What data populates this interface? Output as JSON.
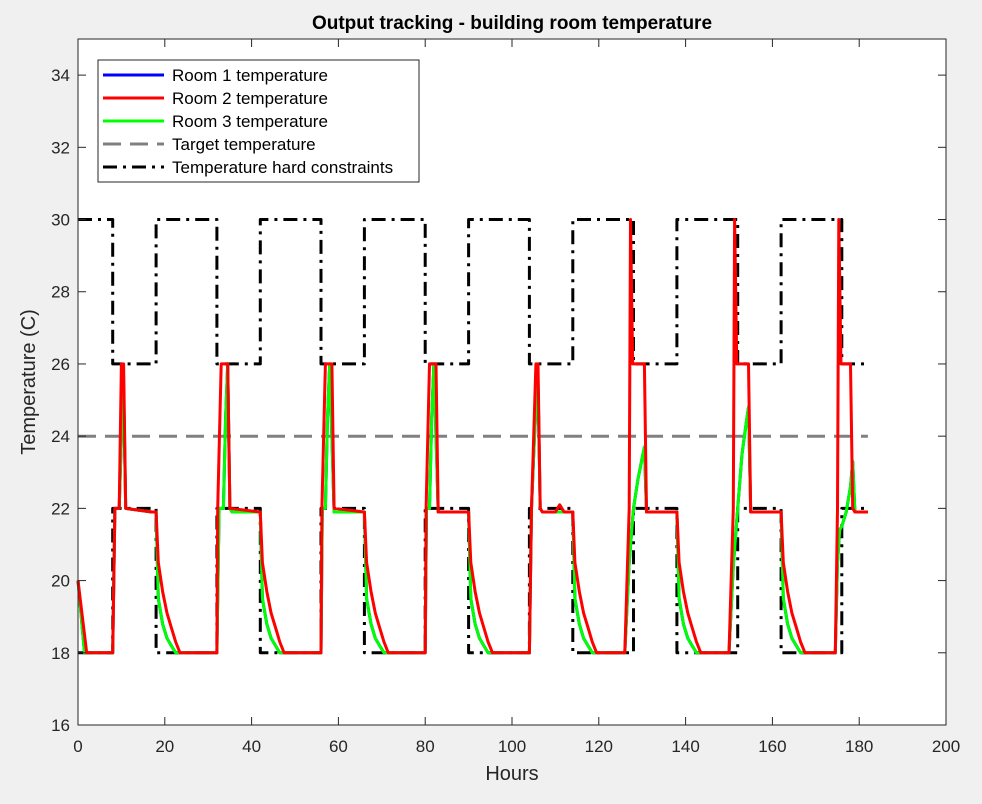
{
  "chart_data": {
    "type": "line",
    "title": "Output tracking - building room temperature",
    "xlabel": "Hours",
    "ylabel": "Temperature (C)",
    "xlim": [
      0,
      200
    ],
    "ylim": [
      16,
      35
    ],
    "xticks": [
      0,
      20,
      40,
      60,
      80,
      100,
      120,
      140,
      160,
      180,
      200
    ],
    "yticks": [
      16,
      18,
      20,
      22,
      24,
      26,
      28,
      30,
      32,
      34
    ],
    "grid": false,
    "legend_position": "top-left",
    "colors": {
      "room1": "#0000ff",
      "room2": "#ff0000",
      "room3": "#00ff00",
      "target": "#808080",
      "constraints": "#000000"
    },
    "series": [
      {
        "name": "Room 1 temperature",
        "style": "solid",
        "x": [
          0,
          1.5,
          8,
          8.5,
          9.5,
          10,
          10.5,
          11,
          17,
          18,
          18.5,
          19.5,
          20.5,
          21.5,
          22.5,
          32,
          32.5,
          33.5,
          34,
          34.5,
          35,
          35.5,
          42,
          42.5,
          43.5,
          44.5,
          45.5,
          46.5,
          56,
          56.3,
          57,
          57.5,
          58,
          59,
          66,
          66.5,
          67.5,
          68.5,
          69.5,
          70.5,
          80,
          80.3,
          81,
          81.5,
          82,
          83,
          90,
          90.5,
          91.5,
          92.5,
          93.5,
          94.5,
          104,
          104.5,
          105,
          105.5,
          106,
          106.5,
          107,
          114,
          114.5,
          115.5,
          116.5,
          117.5,
          118.5,
          126,
          127,
          128,
          129,
          130,
          130.5,
          131,
          138,
          138.5,
          139.5,
          140.5,
          141.5,
          142.5,
          150,
          151,
          152,
          153,
          154,
          154.5,
          155,
          162,
          162.5,
          163.5,
          164.5,
          165.5,
          166.5,
          174.5,
          175,
          175.5,
          176,
          177,
          178,
          178.5,
          179,
          182
        ],
        "y": [
          20,
          18,
          18,
          22,
          22,
          24,
          25.3,
          22,
          21.9,
          21.9,
          19.5,
          18.8,
          18.4,
          18.2,
          18,
          18,
          22,
          22,
          24.5,
          26,
          22,
          21.9,
          21.9,
          19.5,
          18.8,
          18.4,
          18.2,
          18,
          18,
          22,
          22,
          24.5,
          26,
          21.9,
          21.9,
          19.5,
          18.8,
          18.4,
          18.2,
          18,
          18,
          22,
          22,
          24.5,
          26,
          21.9,
          21.9,
          19.5,
          18.8,
          18.4,
          18.2,
          18,
          18,
          22,
          23.5,
          24.8,
          25.5,
          22,
          21.9,
          21.9,
          19.5,
          18.8,
          18.4,
          18.2,
          18,
          18,
          20.5,
          22,
          22.8,
          23.4,
          23.7,
          21.9,
          21.9,
          19.5,
          18.8,
          18.4,
          18.2,
          18,
          18,
          20.4,
          22,
          23.5,
          24.4,
          24.8,
          21.9,
          21.9,
          19.5,
          18.8,
          18.4,
          18.2,
          18,
          18,
          20.5,
          21.4,
          21.5,
          21.9,
          22.6,
          23.3,
          21.9,
          21.9
        ]
      },
      {
        "name": "Room 2 temperature",
        "style": "solid",
        "x": [
          0,
          2,
          8,
          8.5,
          9.5,
          10,
          10.5,
          11,
          17,
          18,
          18.5,
          19.5,
          20.5,
          21.5,
          22.5,
          23.5,
          32,
          32.2,
          33,
          33.5,
          34.5,
          35,
          42,
          42.5,
          43.5,
          44.5,
          45.5,
          46.5,
          47.5,
          56,
          56.2,
          57,
          57.5,
          58.5,
          59,
          66,
          66.5,
          67.5,
          68.5,
          69.5,
          70.5,
          71.5,
          80,
          80.2,
          81,
          81.5,
          82.5,
          83,
          90,
          90.5,
          91.5,
          92.5,
          93.5,
          94.5,
          95.5,
          104,
          104.5,
          105.5,
          106,
          106.5,
          107,
          110,
          111,
          112,
          113,
          114,
          114.5,
          115.5,
          116.5,
          117.5,
          118.5,
          119.5,
          126,
          127,
          127.3,
          127.8,
          128.5,
          129,
          129.5,
          130,
          130.5,
          131,
          138,
          138.5,
          139.5,
          140.5,
          141.5,
          142.5,
          143.5,
          150,
          151,
          151.3,
          151.8,
          152.5,
          153,
          153.5,
          154,
          154.5,
          155,
          162,
          162.5,
          163.5,
          164.5,
          165.5,
          166.5,
          167.5,
          174.5,
          175,
          175.3,
          175.8,
          176.5,
          177,
          177.5,
          178,
          178.5,
          179,
          182
        ],
        "y": [
          20,
          18,
          18,
          22,
          22,
          26,
          26,
          22,
          21.9,
          21.9,
          20.5,
          19.7,
          19.1,
          18.7,
          18.3,
          18,
          18,
          22,
          26,
          26,
          26,
          22,
          21.9,
          20.5,
          19.7,
          19.1,
          18.7,
          18.3,
          18,
          18,
          22,
          26,
          26,
          26,
          22,
          21.9,
          20.5,
          19.7,
          19.1,
          18.7,
          18.3,
          18,
          18,
          22,
          26,
          26,
          26,
          21.9,
          21.9,
          20.5,
          19.7,
          19.1,
          18.7,
          18.3,
          18,
          18,
          22,
          26,
          26,
          22,
          21.9,
          21.9,
          22.1,
          21.9,
          21.9,
          21.9,
          20.5,
          19.7,
          19.1,
          18.7,
          18.3,
          18,
          18,
          22,
          30,
          26,
          26,
          26,
          26,
          26,
          26,
          21.9,
          21.9,
          20.5,
          19.7,
          19.1,
          18.7,
          18.3,
          18,
          18,
          22,
          30,
          26,
          26,
          26,
          26,
          26,
          26,
          21.9,
          21.9,
          20.5,
          19.7,
          19.1,
          18.7,
          18.3,
          18,
          18,
          22,
          30,
          26,
          26,
          26,
          26,
          26,
          22,
          21.9,
          21.9
        ]
      },
      {
        "name": "Room 3 temperature",
        "style": "solid",
        "x": [
          0,
          1.5,
          8,
          8.5,
          9.5,
          10,
          10.5,
          11,
          17,
          18,
          18.5,
          19.5,
          20.5,
          21.5,
          22.5,
          32,
          32.5,
          33.5,
          34,
          34.5,
          35,
          35.5,
          42,
          42.5,
          43.5,
          44.5,
          45.5,
          46.5,
          56,
          56.3,
          57,
          57.5,
          58,
          59,
          66,
          66.5,
          67.5,
          68.5,
          69.5,
          70.5,
          80,
          80.3,
          81,
          81.5,
          82,
          83,
          90,
          90.5,
          91.5,
          92.5,
          93.5,
          94.5,
          104,
          104.5,
          105,
          105.5,
          106,
          106.5,
          107,
          114,
          114.5,
          115.5,
          116.5,
          117.5,
          118.5,
          126,
          127,
          128,
          129,
          130,
          130.5,
          131,
          138,
          138.5,
          139.5,
          140.5,
          141.5,
          142.5,
          150,
          151,
          152,
          153,
          154,
          154.5,
          155,
          162,
          162.5,
          163.5,
          164.5,
          165.5,
          166.5,
          174.5,
          175,
          175.5,
          176,
          177,
          178,
          178.5,
          179,
          182
        ],
        "y": [
          20,
          18,
          18,
          22,
          22,
          24,
          25.3,
          22,
          21.9,
          21.9,
          19.5,
          18.8,
          18.4,
          18.2,
          18,
          18,
          22,
          22,
          24.5,
          26,
          22,
          21.9,
          21.9,
          19.5,
          18.8,
          18.4,
          18.2,
          18,
          18,
          22,
          22,
          24.5,
          26,
          21.9,
          21.9,
          19.5,
          18.8,
          18.4,
          18.2,
          18,
          18,
          22,
          22,
          24.5,
          26,
          21.9,
          21.9,
          19.5,
          18.8,
          18.4,
          18.2,
          18,
          18,
          22,
          23.5,
          24.8,
          25.5,
          22,
          21.9,
          21.9,
          19.5,
          18.8,
          18.4,
          18.2,
          18,
          18,
          20.5,
          22,
          22.8,
          23.4,
          23.7,
          21.9,
          21.9,
          19.5,
          18.8,
          18.4,
          18.2,
          18,
          18,
          20.4,
          22,
          23.5,
          24.4,
          24.8,
          21.9,
          21.9,
          19.5,
          18.8,
          18.4,
          18.2,
          18,
          18,
          20.5,
          21.4,
          21.5,
          21.9,
          22.6,
          23.3,
          21.9,
          21.9
        ]
      },
      {
        "name": "Target temperature",
        "style": "dashed",
        "x": [
          0,
          182
        ],
        "y": [
          24,
          24
        ]
      },
      {
        "name": "Temperature hard constraints",
        "style": "dashdot",
        "upper": {
          "x": [
            0,
            8,
            8,
            18,
            18,
            32,
            32,
            42,
            42,
            56,
            56,
            66,
            66,
            80,
            80,
            90,
            90,
            104,
            104,
            114,
            114,
            128,
            128,
            138,
            138,
            152,
            152,
            162,
            162,
            176,
            176,
            182
          ],
          "y": [
            30,
            30,
            26,
            26,
            30,
            30,
            26,
            26,
            30,
            30,
            26,
            26,
            30,
            30,
            26,
            26,
            30,
            30,
            26,
            26,
            30,
            30,
            26,
            26,
            30,
            30,
            26,
            26,
            30,
            30,
            26,
            26
          ]
        },
        "lower": {
          "x": [
            0,
            8,
            8,
            18,
            18,
            32,
            32,
            42,
            42,
            56,
            56,
            66,
            66,
            80,
            80,
            90,
            90,
            104,
            104,
            114,
            114,
            128,
            128,
            138,
            138,
            152,
            152,
            162,
            162,
            176,
            176,
            182
          ],
          "y": [
            18,
            18,
            22,
            22,
            18,
            18,
            22,
            22,
            18,
            18,
            22,
            22,
            18,
            18,
            22,
            22,
            18,
            18,
            22,
            22,
            18,
            18,
            22,
            22,
            18,
            18,
            22,
            22,
            18,
            18,
            22,
            22
          ]
        }
      }
    ]
  }
}
